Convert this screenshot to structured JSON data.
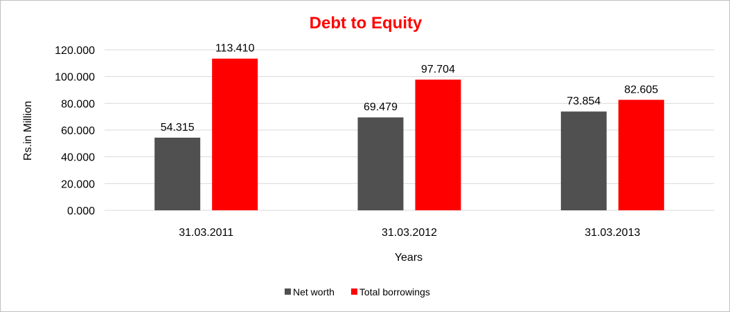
{
  "chart_data": {
    "type": "bar",
    "title": "Debt to Equity",
    "xlabel": "Years",
    "ylabel": "Rs.in Million",
    "categories": [
      "31.03.2011",
      "31.03.2012",
      "31.03.2013"
    ],
    "series": [
      {
        "name": "Net worth",
        "values": [
          54.315,
          69.479,
          73.854
        ],
        "color": "#505050"
      },
      {
        "name": "Total borrowings",
        "values": [
          113.41,
          97.704,
          82.605
        ],
        "color": "#ff0000"
      }
    ],
    "ylim": [
      0,
      120
    ],
    "yticks": [
      "0.000",
      "20.000",
      "40.000",
      "60.000",
      "80.000",
      "100.000",
      "120.000"
    ],
    "data_labels": [
      [
        "54.315",
        "69.479",
        "73.854"
      ],
      [
        "113.410",
        "97.704",
        "82.605"
      ]
    ],
    "grid": true,
    "legend_position": "bottom",
    "title_color": "#ff0000",
    "gridline_color": "#d9d9d9"
  }
}
